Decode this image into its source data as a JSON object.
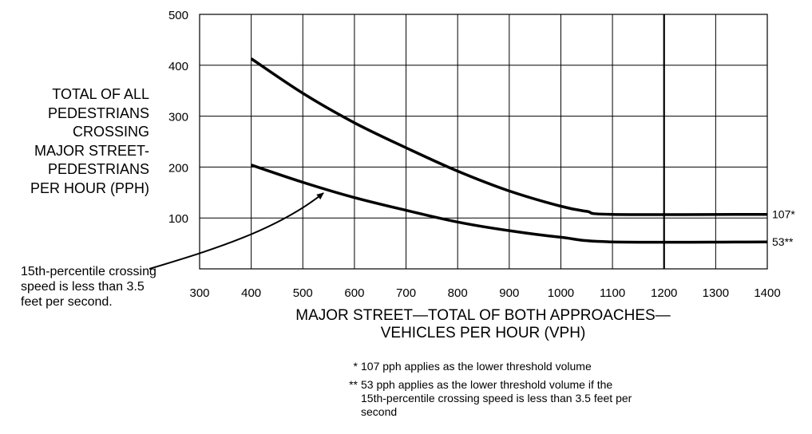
{
  "chart_data": {
    "type": "line",
    "ylabel_lines": [
      "TOTAL OF ALL",
      "PEDESTRIANS",
      "CROSSING",
      "MAJOR STREET-",
      "PEDESTRIANS",
      "PER HOUR (PPH)"
    ],
    "xlabel_lines": [
      "MAJOR STREET—TOTAL OF BOTH APPROACHES—",
      "VEHICLES PER HOUR (VPH)"
    ],
    "xlim": [
      300,
      1400
    ],
    "ylim": [
      0,
      500
    ],
    "x_ticks": [
      300,
      400,
      500,
      600,
      700,
      800,
      900,
      1000,
      1100,
      1200,
      1300,
      1400
    ],
    "y_ticks": [
      100,
      200,
      300,
      400,
      500
    ],
    "grid": true,
    "reference_line_x": 1200,
    "series": [
      {
        "end_label": "107*",
        "points": [
          [
            400,
            413
          ],
          [
            500,
            345
          ],
          [
            600,
            287
          ],
          [
            700,
            238
          ],
          [
            800,
            192
          ],
          [
            900,
            153
          ],
          [
            1000,
            123
          ],
          [
            1050,
            113
          ],
          [
            1100,
            107
          ],
          [
            1400,
            107
          ]
        ]
      },
      {
        "end_label": "53**",
        "points": [
          [
            400,
            204
          ],
          [
            500,
            170
          ],
          [
            600,
            140
          ],
          [
            700,
            115
          ],
          [
            800,
            92
          ],
          [
            900,
            75
          ],
          [
            1000,
            62
          ],
          [
            1100,
            53
          ],
          [
            1400,
            53
          ]
        ]
      }
    ],
    "annotation": {
      "text": "15th-percentile crossing speed is less than 3.5 feet per second.",
      "points_to": [
        545,
        170
      ]
    },
    "footnotes": [
      {
        "marker": "*",
        "text": "107 pph applies as the lower threshold volume"
      },
      {
        "marker": "**",
        "text": "53 pph applies as the lower threshold volume if the 15th-percentile crossing speed is less than 3.5 feet per second"
      }
    ]
  }
}
